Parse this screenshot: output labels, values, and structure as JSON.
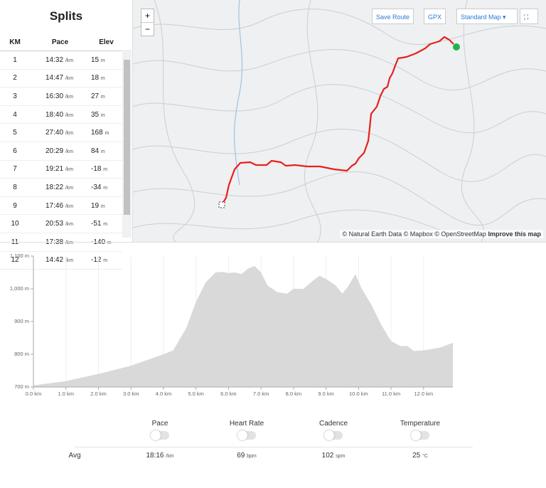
{
  "splits": {
    "title": "Splits",
    "columns": [
      "KM",
      "Pace",
      "Elev"
    ],
    "rows": [
      [
        "1",
        "14:32",
        "/km",
        "15",
        "m"
      ],
      [
        "2",
        "14:47",
        "/km",
        "18",
        "m"
      ],
      [
        "3",
        "16:30",
        "/km",
        "27",
        "m"
      ],
      [
        "4",
        "18:40",
        "/km",
        "35",
        "m"
      ],
      [
        "5",
        "27:40",
        "/km",
        "168",
        "m"
      ],
      [
        "6",
        "20:29",
        "/km",
        "84",
        "m"
      ],
      [
        "7",
        "19:21",
        "/km",
        "-18",
        "m"
      ],
      [
        "8",
        "18:22",
        "/km",
        "-34",
        "m"
      ],
      [
        "9",
        "17:46",
        "/km",
        "19",
        "m"
      ],
      [
        "10",
        "20:53",
        "/km",
        "-51",
        "m"
      ],
      [
        "11",
        "17:38",
        "/km",
        "-140",
        "m"
      ],
      [
        "12",
        "14:42",
        "/km",
        "-12",
        "m"
      ]
    ]
  },
  "map": {
    "buttons": {
      "zoom_in": "+",
      "zoom_out": "−",
      "save_route": "Save Route",
      "gpx": "GPX",
      "map_style": "Standard Map ▾"
    },
    "attribution": "© Natural Earth Data © Mapbox © OpenStreetMap",
    "attribution_link": "Improve this map"
  },
  "elevation_chart": {
    "type": "area",
    "color": "#d9d9d9",
    "grid": true,
    "x": [
      0,
      1,
      2,
      3,
      4,
      4.3,
      4.7,
      5.0,
      5.3,
      5.6,
      5.8,
      6.0,
      6.2,
      6.4,
      6.6,
      6.8,
      7.0,
      7.2,
      7.5,
      7.8,
      8.0,
      8.3,
      8.6,
      8.8,
      9.0,
      9.3,
      9.5,
      9.7,
      9.9,
      10.1,
      10.4,
      10.7,
      11.0,
      11.3,
      11.5,
      11.7,
      12.0,
      12.5,
      12.9
    ],
    "values": [
      705,
      718,
      740,
      765,
      800,
      812,
      880,
      960,
      1020,
      1050,
      1052,
      1048,
      1050,
      1045,
      1062,
      1070,
      1050,
      1010,
      990,
      985,
      1000,
      1000,
      1025,
      1040,
      1030,
      1010,
      985,
      1010,
      1045,
      1000,
      950,
      890,
      840,
      825,
      825,
      810,
      812,
      820,
      835
    ],
    "xlim": [
      0,
      12.9
    ],
    "ylim": [
      700,
      1100
    ],
    "xticks": [
      {
        "value": 0,
        "label": "0.0 km"
      },
      {
        "value": 1,
        "label": "1.0 km"
      },
      {
        "value": 2,
        "label": "2.0 km"
      },
      {
        "value": 3,
        "label": "3.0 km"
      },
      {
        "value": 4,
        "label": "4.0 km"
      },
      {
        "value": 5,
        "label": "5.0 km"
      },
      {
        "value": 6,
        "label": "6.0 km"
      },
      {
        "value": 7,
        "label": "7.0 km"
      },
      {
        "value": 8,
        "label": "8.0 km"
      },
      {
        "value": 9,
        "label": "9.0 km"
      },
      {
        "value": 10,
        "label": "10.0 km"
      },
      {
        "value": 11,
        "label": "11.0 km"
      },
      {
        "value": 12,
        "label": "12.0 km"
      }
    ],
    "yticks": [
      {
        "value": 700,
        "label": "700 m"
      },
      {
        "value": 800,
        "label": "800 m"
      },
      {
        "value": 900,
        "label": "900 m"
      },
      {
        "value": 1000,
        "label": "1,000 m"
      },
      {
        "value": 1100,
        "label": "1,100 m"
      }
    ]
  },
  "stats": {
    "labels": [
      "Pace",
      "Heart Rate",
      "Cadence",
      "Temperature"
    ],
    "avg_label": "Avg",
    "avg": [
      [
        "18:16",
        "/km"
      ],
      [
        "69",
        "bpm"
      ],
      [
        "102",
        "spm"
      ],
      [
        "25",
        "°C"
      ]
    ]
  }
}
